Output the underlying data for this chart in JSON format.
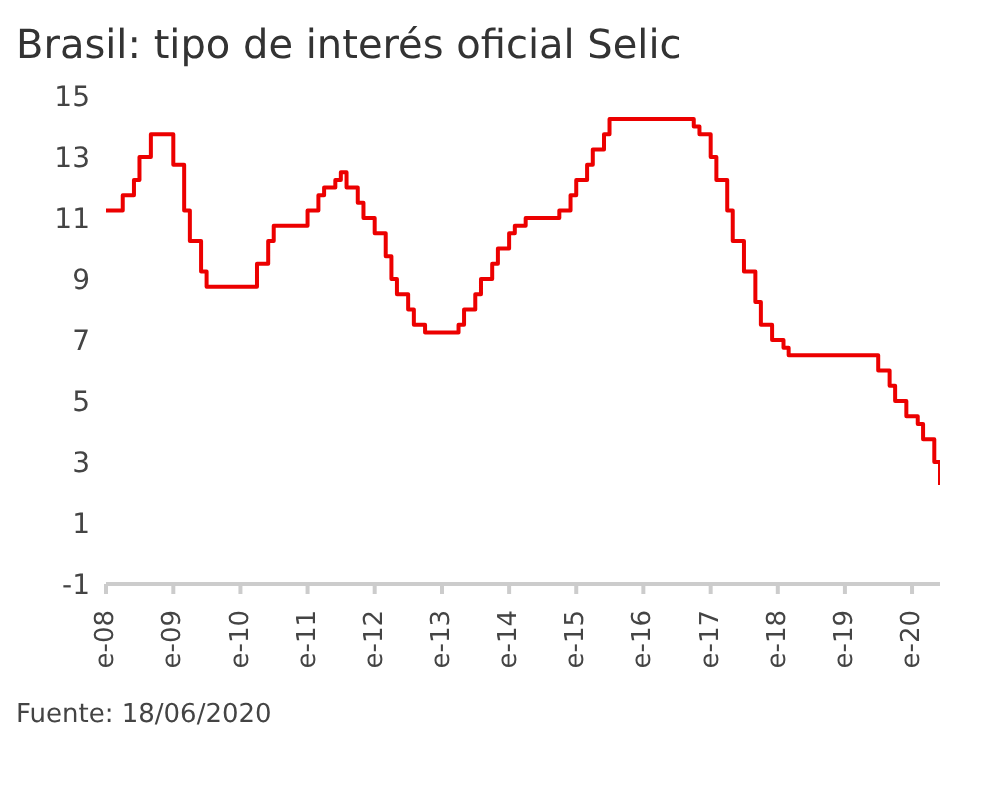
{
  "chart_data": {
    "type": "step",
    "title": "Brasil: tipo de interés oficial Selic",
    "annotations": [
      "Fuente: 18/06/2020"
    ],
    "x": [
      "2008-01",
      "2008-04",
      "2008-06",
      "2008-07",
      "2008-09",
      "2009-01",
      "2009-03",
      "2009-04",
      "2009-06",
      "2009-07",
      "2010-04",
      "2010-06",
      "2010-07",
      "2011-01",
      "2011-03",
      "2011-04",
      "2011-06",
      "2011-07",
      "2011-08",
      "2011-10",
      "2011-11",
      "2012-01",
      "2012-03",
      "2012-04",
      "2012-05",
      "2012-07",
      "2012-08",
      "2012-10",
      "2013-04",
      "2013-05",
      "2013-07",
      "2013-08",
      "2013-10",
      "2013-11",
      "2014-01",
      "2014-02",
      "2014-04",
      "2014-10",
      "2014-12",
      "2015-01",
      "2015-03",
      "2015-04",
      "2015-06",
      "2015-07",
      "2016-10",
      "2016-11",
      "2017-01",
      "2017-02",
      "2017-04",
      "2017-05",
      "2017-07",
      "2017-09",
      "2017-10",
      "2017-12",
      "2018-02",
      "2018-03",
      "2019-07",
      "2019-09",
      "2019-10",
      "2019-12",
      "2020-02",
      "2020-03",
      "2020-05",
      "2020-06"
    ],
    "series": [
      {
        "color": "#ec0000",
        "values": [
          11.25,
          11.75,
          12.25,
          13,
          13.75,
          12.75,
          11.25,
          10.25,
          9.25,
          8.75,
          9.5,
          10.25,
          10.75,
          11.25,
          11.75,
          12,
          12.25,
          12.5,
          12,
          11.5,
          11,
          10.5,
          9.75,
          9,
          8.5,
          8,
          7.5,
          7.25,
          7.5,
          8,
          8.5,
          9,
          9.5,
          10,
          10.5,
          10.75,
          11,
          11.25,
          11.75,
          12.25,
          12.75,
          13.25,
          13.75,
          14.25,
          14,
          13.75,
          13,
          12.25,
          11.25,
          10.25,
          9.25,
          8.25,
          7.5,
          7,
          6.75,
          6.5,
          6,
          5.5,
          5,
          4.5,
          4.25,
          3.75,
          3,
          2.25
        ]
      }
    ],
    "xlim": [
      "2008-01",
      "2020-06"
    ],
    "xticks": [
      {
        "value": "2008-01",
        "label": "e-08"
      },
      {
        "value": "2009-01",
        "label": "e-09"
      },
      {
        "value": "2010-01",
        "label": "e-10"
      },
      {
        "value": "2011-01",
        "label": "e-11"
      },
      {
        "value": "2012-01",
        "label": "e-12"
      },
      {
        "value": "2013-01",
        "label": "e-13"
      },
      {
        "value": "2014-01",
        "label": "e-14"
      },
      {
        "value": "2015-01",
        "label": "e-15"
      },
      {
        "value": "2016-01",
        "label": "e-16"
      },
      {
        "value": "2017-01",
        "label": "e-17"
      },
      {
        "value": "2018-01",
        "label": "e-18"
      },
      {
        "value": "2019-01",
        "label": "e-19"
      },
      {
        "value": "2020-01",
        "label": "e-20"
      }
    ],
    "ylim": [
      -1,
      15
    ],
    "yticks": [
      -1,
      1,
      3,
      5,
      7,
      9,
      11,
      13,
      15
    ],
    "grid": false,
    "legend": false,
    "marker": "none",
    "line_style": "solid"
  }
}
